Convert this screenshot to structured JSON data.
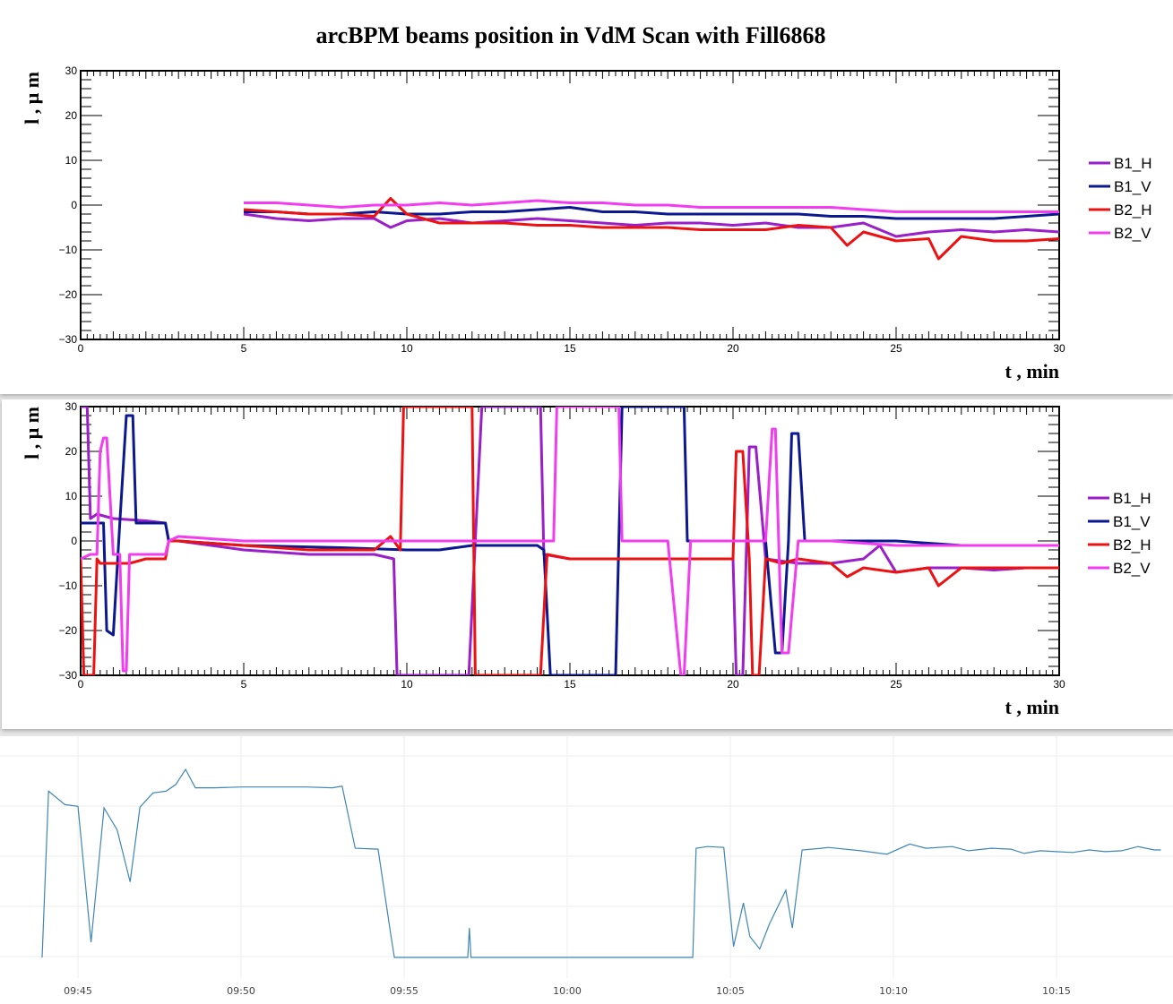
{
  "chart_data": [
    {
      "type": "line",
      "title": "arcBPM beams position in VdM Scan with Fill6868",
      "xlabel": "t , min",
      "ylabel": "l ,  μ m",
      "xlim": [
        0,
        30
      ],
      "ylim": [
        -30,
        30
      ],
      "xticks": [
        "0",
        "5",
        "10",
        "15",
        "20",
        "25",
        "30"
      ],
      "yticks": [
        "30",
        "20",
        "10",
        "0",
        "−10",
        "−20",
        "−30"
      ],
      "legend_position": "right",
      "series": [
        {
          "name": "B1_H",
          "color": "#9b1fc8",
          "x": [
            5,
            6,
            7,
            8,
            9,
            9.5,
            10,
            11,
            12,
            13,
            14,
            15,
            16,
            17,
            18,
            19,
            20,
            21,
            22,
            23,
            24,
            25,
            26,
            27,
            28,
            29,
            30
          ],
          "y": [
            -2,
            -3,
            -3.5,
            -3,
            -3,
            -5,
            -3.5,
            -3,
            -4,
            -3.5,
            -3,
            -3.5,
            -4,
            -4.5,
            -4,
            -4,
            -4.5,
            -4,
            -5,
            -5,
            -4,
            -7,
            -6,
            -5.5,
            -6,
            -5.5,
            -6
          ]
        },
        {
          "name": "B1_V",
          "color": "#0c1890",
          "x": [
            5,
            6,
            7,
            8,
            9,
            10,
            11,
            12,
            13,
            14,
            15,
            16,
            17,
            18,
            19,
            20,
            21,
            22,
            23,
            24,
            25,
            26,
            27,
            28,
            29,
            30
          ],
          "y": [
            -1.5,
            -1.5,
            -2,
            -2,
            -1.5,
            -2,
            -2,
            -1.5,
            -1.5,
            -1,
            -0.5,
            -1.5,
            -1.5,
            -2,
            -2,
            -2,
            -2,
            -2,
            -2.5,
            -2.5,
            -3,
            -3,
            -3,
            -3,
            -2.5,
            -2
          ]
        },
        {
          "name": "B2_H",
          "color": "#ee1111",
          "x": [
            5,
            6,
            7,
            8,
            9,
            9.5,
            10,
            11,
            12,
            13,
            14,
            15,
            16,
            17,
            18,
            19,
            20,
            21,
            22,
            23,
            23.5,
            24,
            25,
            26,
            26.3,
            27,
            28,
            29,
            30
          ],
          "y": [
            -1,
            -1.5,
            -2,
            -2,
            -2.5,
            1.5,
            -2,
            -4,
            -4,
            -4,
            -4.5,
            -4.5,
            -5,
            -5,
            -5,
            -5.5,
            -5.5,
            -5.5,
            -4.5,
            -5,
            -9,
            -6,
            -8,
            -7.5,
            -12,
            -7,
            -8,
            -8,
            -7.5
          ]
        },
        {
          "name": "B2_V",
          "color": "#f23cf0",
          "x": [
            5,
            6,
            7,
            8,
            9,
            10,
            11,
            12,
            13,
            14,
            15,
            16,
            17,
            18,
            19,
            20,
            21,
            22,
            23,
            24,
            25,
            26,
            27,
            28,
            29,
            30
          ],
          "y": [
            0.5,
            0.5,
            0,
            -0.5,
            0,
            0,
            0.5,
            0,
            0.5,
            1,
            0.5,
            0.5,
            0,
            0,
            -0.5,
            -0.5,
            -0.5,
            -0.5,
            -0.5,
            -1,
            -1.5,
            -1.5,
            -1.5,
            -1.5,
            -1.5,
            -1.5
          ]
        }
      ]
    },
    {
      "type": "line",
      "title": "",
      "xlabel": "t , min",
      "ylabel": "l ,  μ m",
      "xlim": [
        0,
        30
      ],
      "ylim": [
        -30,
        30
      ],
      "xticks": [
        "0",
        "5",
        "10",
        "15",
        "20",
        "25",
        "30"
      ],
      "yticks": [
        "30",
        "20",
        "10",
        "0",
        "−10",
        "−20",
        "−30"
      ],
      "legend_position": "right",
      "series": [
        {
          "name": "B1_H",
          "color": "#9b1fc8",
          "x": [
            0,
            0.2,
            0.3,
            0.5,
            1,
            2,
            2.6,
            2.7,
            3,
            5,
            7,
            9,
            9.6,
            9.7,
            9.8,
            10.5,
            11,
            11.8,
            11.9,
            12.1,
            12.3,
            12.5,
            14,
            14.1,
            14.2,
            15,
            16,
            18,
            20,
            20.1,
            20.3,
            20.5,
            20.7,
            21,
            22,
            23,
            24,
            24.5,
            25,
            26,
            27,
            28,
            29,
            30
          ],
          "y": [
            30,
            30,
            5,
            6,
            5,
            4.5,
            4,
            0,
            0,
            -2,
            -3,
            -3,
            -4,
            -30,
            -30,
            -30,
            -30,
            -30,
            -30,
            0,
            30,
            30,
            30,
            30,
            -3,
            -4,
            -4,
            -4,
            -4,
            -30,
            -30,
            21,
            21,
            -4,
            -5,
            -5,
            -4,
            -1,
            -7,
            -6,
            -6,
            -6.5,
            -6,
            -6
          ]
        },
        {
          "name": "B1_V",
          "color": "#0c1890",
          "x": [
            0,
            0.3,
            0.5,
            0.7,
            0.8,
            1,
            1.2,
            1.4,
            1.6,
            1.7,
            1.8,
            2.6,
            2.7,
            3,
            5,
            8,
            10,
            11,
            12,
            14,
            14.2,
            14.4,
            14.5,
            16.3,
            16.4,
            16.6,
            16.8,
            18.5,
            18.6,
            18.8,
            19,
            20,
            21,
            21.3,
            21.5,
            21.7,
            21.8,
            22,
            22.2,
            22.3,
            22.5,
            25,
            27,
            30
          ],
          "y": [
            4,
            4,
            4,
            4,
            -20,
            -21,
            4,
            28,
            28,
            4,
            4,
            4,
            0,
            0,
            -1,
            -1.5,
            -2,
            -2,
            -1,
            -1,
            -2,
            -30,
            -30,
            -30,
            -30,
            30,
            30,
            30,
            0,
            0,
            0,
            0,
            0,
            -25,
            -25,
            0,
            24,
            24,
            0,
            0,
            0,
            0,
            -1,
            -1
          ]
        },
        {
          "name": "B2_H",
          "color": "#ee1111",
          "x": [
            0,
            0.1,
            0.2,
            0.4,
            0.5,
            0.6,
            1,
            1.5,
            2,
            2.6,
            2.7,
            3,
            5,
            7,
            9,
            9.5,
            9.8,
            9.9,
            10,
            11,
            11.7,
            11.8,
            12,
            12.1,
            12.3,
            13,
            14,
            14.1,
            14.3,
            15,
            16,
            18,
            20,
            20.1,
            20.3,
            20.5,
            20.6,
            20.8,
            21,
            21.5,
            22,
            23,
            23.5,
            24,
            25,
            26,
            26.3,
            27,
            28,
            30
          ],
          "y": [
            -4,
            -30,
            -30,
            -30,
            -4,
            -5,
            -5,
            -5,
            -4,
            -4,
            0,
            0,
            -1,
            -2,
            -2,
            1,
            -2,
            30,
            30,
            30,
            30,
            30,
            30,
            -30,
            -30,
            -30,
            -30,
            -30,
            -3,
            -4,
            -4,
            -4,
            -4,
            20,
            20,
            -4,
            -30,
            -30,
            -4,
            -5,
            -4,
            -5,
            -8,
            -6,
            -7,
            -6,
            -10,
            -6,
            -6,
            -6
          ]
        },
        {
          "name": "B2_V",
          "color": "#f23cf0",
          "x": [
            0,
            0.3,
            0.5,
            0.6,
            0.7,
            0.8,
            1,
            1.2,
            1.3,
            1.4,
            1.5,
            1.7,
            2,
            2.6,
            2.7,
            3,
            5,
            7,
            9,
            10,
            11,
            12,
            13,
            14,
            14.5,
            14.6,
            14.8,
            16.4,
            16.5,
            16.6,
            17,
            18,
            18.4,
            18.5,
            18.7,
            20,
            21,
            21.2,
            21.3,
            21.5,
            21.7,
            22,
            22.2,
            23,
            25,
            27,
            30
          ],
          "y": [
            -4,
            -3,
            -3,
            20,
            23,
            23,
            -3,
            -3,
            -29,
            -29,
            -3,
            -3,
            -3,
            -3,
            0,
            1,
            0,
            0,
            0,
            0,
            0,
            0,
            0,
            0,
            0,
            30,
            30,
            30,
            30,
            0,
            0,
            0,
            -30,
            -30,
            0,
            0,
            0,
            25,
            25,
            -25,
            -25,
            0,
            0,
            0,
            -1,
            -1,
            -1
          ]
        }
      ]
    },
    {
      "type": "line",
      "title": "",
      "xlabel": "",
      "ylabel": "",
      "xticks": [
        "09:45",
        "09:50",
        "09:55",
        "10:00",
        "10:05",
        "10:10",
        "10:15"
      ],
      "color": "#3f86b5",
      "grid": true,
      "note_x_unit": "minutes",
      "x": [
        43.9,
        44.1,
        44.6,
        45.0,
        45.4,
        45.8,
        46.2,
        46.6,
        46.9,
        47.3,
        47.7,
        48.0,
        48.3,
        48.6,
        49.2,
        50,
        51,
        52,
        52.8,
        53.1,
        53.5,
        54.2,
        54.6,
        54.7,
        56.95,
        57.0,
        57.05,
        63.85,
        63.95,
        64.3,
        64.8,
        65.1,
        65.4,
        65.6,
        65.9,
        66.2,
        66.7,
        66.9,
        67.2,
        67.8,
        68,
        69,
        69.8,
        70.5,
        71,
        71.8,
        72.3,
        73,
        73.6,
        74,
        74.5,
        75,
        75.5,
        76,
        76.5,
        77,
        77.5,
        78,
        78.2
      ],
      "y": [
        -120,
        78,
        62,
        60,
        -102,
        58,
        32,
        -30,
        59,
        76,
        78,
        86,
        104,
        82,
        82,
        83,
        83,
        83,
        82,
        84,
        10,
        9,
        -95,
        -120,
        -120,
        -85,
        -120,
        -120,
        10,
        12,
        11,
        -107,
        -55,
        -95,
        -110,
        -80,
        -40,
        -85,
        8,
        10,
        11,
        7,
        3,
        15,
        10,
        12,
        7,
        10,
        9,
        4,
        7,
        6,
        5,
        8,
        6,
        7,
        12,
        8,
        8
      ]
    }
  ]
}
